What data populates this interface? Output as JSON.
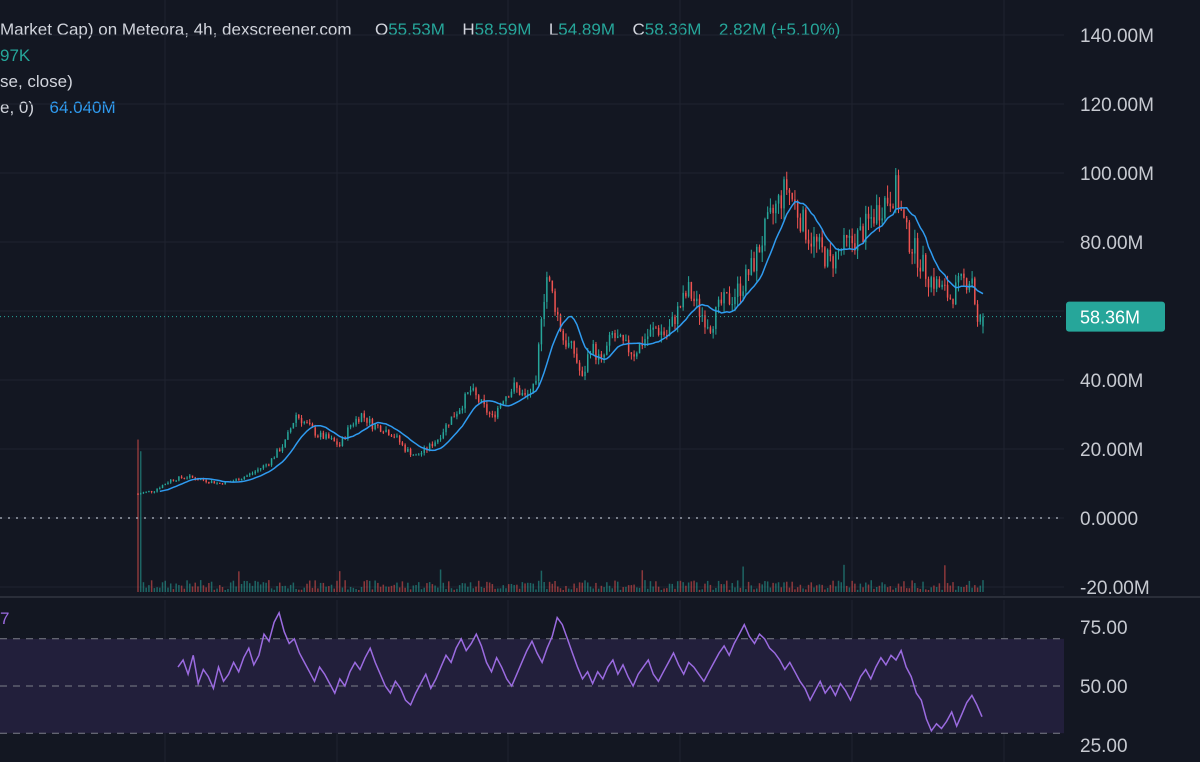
{
  "header": {
    "title": "Market Cap) on Meteora, 4h, dexscreener.com",
    "ohlc": [
      {
        "key": "O",
        "value": "55.53M"
      },
      {
        "key": "H",
        "value": "58.59M"
      },
      {
        "key": "L",
        "value": "54.89M"
      },
      {
        "key": "C",
        "value": "58.36M"
      }
    ],
    "change": "2.82M (+5.10%)",
    "volume_value": "97K",
    "ma_params": "se, close)",
    "ma_params2": "e, 0)",
    "ma_value": "64.040M",
    "rsi_label_fragment": "7"
  },
  "colors": {
    "background": "#131722",
    "up": "#26a69a",
    "down": "#ef5350",
    "ma": "#2f9bf0",
    "rsi": "#9b6be0",
    "rsi_band": "#221f3b",
    "price_tag": "#26a69a"
  },
  "chart_data": [
    {
      "type": "candlestick",
      "title": "",
      "timeframe": "4h",
      "ylim": [
        -20,
        140
      ],
      "y_ticks": [
        {
          "value": 140,
          "label": "140.00M"
        },
        {
          "value": 120,
          "label": "120.00M"
        },
        {
          "value": 100,
          "label": "100.00M"
        },
        {
          "value": 80,
          "label": "80.00M"
        },
        {
          "value": 60,
          "label": ""
        },
        {
          "value": 40,
          "label": "40.00M"
        },
        {
          "value": 20,
          "label": "20.00M"
        },
        {
          "value": 0,
          "label": "0.0000"
        },
        {
          "value": -20,
          "label": "-20.00M"
        }
      ],
      "last_price": 58.36,
      "last_price_label": "58.36M",
      "unit": "M",
      "price_path_keypoints": [
        [
          0,
          7
        ],
        [
          6,
          8
        ],
        [
          12,
          11
        ],
        [
          18,
          12
        ],
        [
          24,
          11
        ],
        [
          30,
          10
        ],
        [
          36,
          11
        ],
        [
          42,
          13
        ],
        [
          48,
          16
        ],
        [
          54,
          22
        ],
        [
          58,
          30
        ],
        [
          62,
          27
        ],
        [
          66,
          24
        ],
        [
          70,
          23
        ],
        [
          74,
          21
        ],
        [
          78,
          27
        ],
        [
          82,
          30
        ],
        [
          86,
          27
        ],
        [
          90,
          26
        ],
        [
          94,
          24
        ],
        [
          98,
          20
        ],
        [
          102,
          18
        ],
        [
          106,
          20
        ],
        [
          110,
          23
        ],
        [
          114,
          28
        ],
        [
          118,
          32
        ],
        [
          122,
          37
        ],
        [
          126,
          33
        ],
        [
          130,
          29
        ],
        [
          134,
          35
        ],
        [
          138,
          38
        ],
        [
          142,
          35
        ],
        [
          146,
          38
        ],
        [
          148,
          60
        ],
        [
          150,
          70
        ],
        [
          153,
          62
        ],
        [
          156,
          52
        ],
        [
          160,
          48
        ],
        [
          163,
          40
        ],
        [
          166,
          50
        ],
        [
          170,
          45
        ],
        [
          174,
          53
        ],
        [
          178,
          50
        ],
        [
          182,
          48
        ],
        [
          186,
          52
        ],
        [
          190,
          55
        ],
        [
          194,
          53
        ],
        [
          198,
          60
        ],
        [
          202,
          66
        ],
        [
          206,
          60
        ],
        [
          210,
          56
        ],
        [
          214,
          62
        ],
        [
          218,
          64
        ],
        [
          222,
          68
        ],
        [
          226,
          74
        ],
        [
          230,
          83
        ],
        [
          234,
          90
        ],
        [
          238,
          96
        ],
        [
          242,
          89
        ],
        [
          246,
          82
        ],
        [
          250,
          78
        ],
        [
          254,
          74
        ],
        [
          258,
          78
        ],
        [
          262,
          80
        ],
        [
          266,
          83
        ],
        [
          270,
          88
        ],
        [
          274,
          92
        ],
        [
          278,
          95
        ],
        [
          282,
          82
        ],
        [
          286,
          76
        ],
        [
          290,
          70
        ],
        [
          294,
          67
        ],
        [
          298,
          64
        ],
        [
          302,
          68
        ],
        [
          306,
          70
        ],
        [
          308,
          56
        ],
        [
          310,
          58.36
        ]
      ],
      "x_bars": 311
    },
    {
      "type": "line",
      "title": "",
      "ylim": [
        25,
        80
      ],
      "y_ticks": [
        {
          "value": 75,
          "label": "75.00"
        },
        {
          "value": 50,
          "label": "50.00"
        },
        {
          "value": 25,
          "label": "25.00"
        }
      ],
      "bands": [
        30,
        70
      ],
      "last_value": 37,
      "series": [
        {
          "values": [
            58,
            61,
            55,
            63,
            51,
            57,
            54,
            49,
            58,
            52,
            55,
            60,
            56,
            62,
            66,
            59,
            63,
            72,
            69,
            77,
            81,
            73,
            68,
            70,
            64,
            60,
            56,
            52,
            58,
            55,
            51,
            47,
            53,
            50,
            56,
            60,
            57,
            62,
            66,
            60,
            55,
            50,
            47,
            52,
            49,
            44,
            42,
            47,
            51,
            55,
            49,
            53,
            58,
            63,
            60,
            66,
            70,
            65,
            68,
            72,
            67,
            60,
            56,
            62,
            58,
            53,
            50,
            55,
            60,
            65,
            69,
            64,
            60,
            66,
            71,
            79,
            76,
            70,
            64,
            58,
            53,
            56,
            51,
            56,
            53,
            58,
            61,
            55,
            59,
            54,
            50,
            55,
            58,
            61,
            55,
            52,
            56,
            60,
            64,
            59,
            55,
            60,
            58,
            55,
            52,
            56,
            60,
            64,
            67,
            63,
            68,
            72,
            76,
            71,
            68,
            72,
            70,
            66,
            64,
            61,
            57,
            60,
            56,
            52,
            49,
            44,
            48,
            52,
            47,
            50,
            46,
            51,
            48,
            44,
            49,
            54,
            57,
            53,
            58,
            62,
            59,
            63,
            61,
            65,
            58,
            54,
            47,
            44,
            36,
            31,
            34,
            32,
            35,
            39,
            33,
            38,
            43,
            46,
            42,
            37
          ]
        }
      ]
    }
  ]
}
